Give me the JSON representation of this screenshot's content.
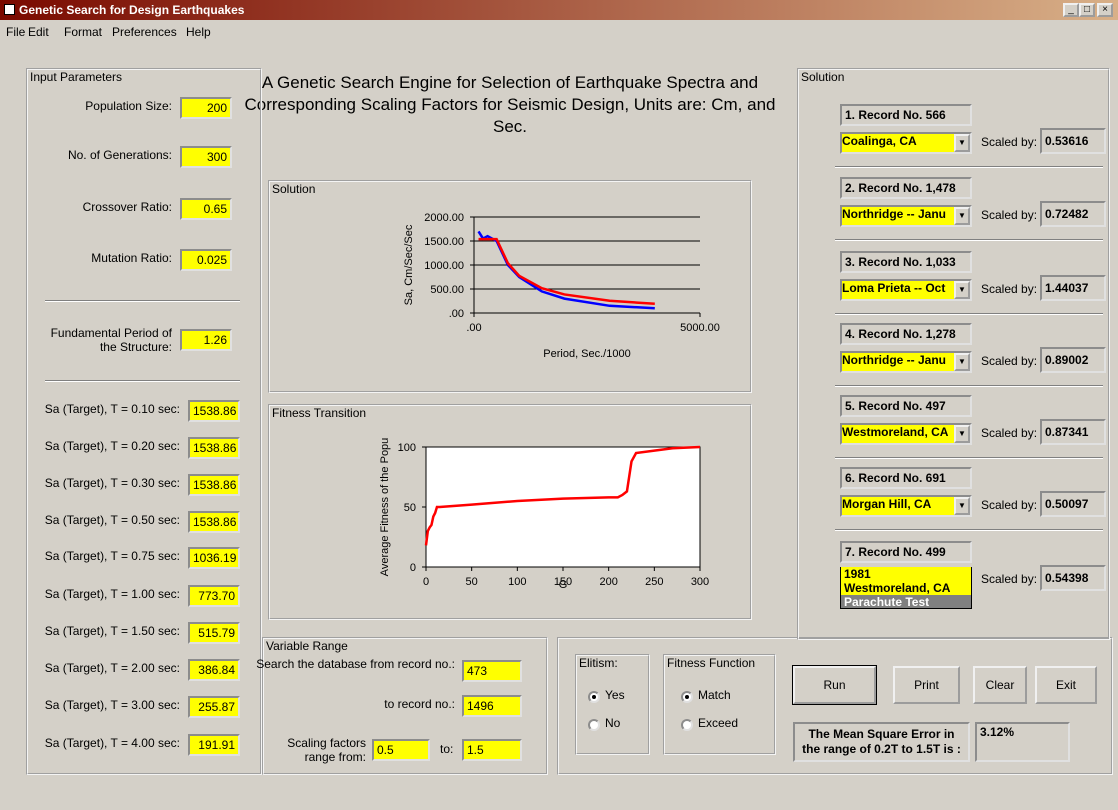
{
  "window": {
    "title": "Genetic Search for Design Earthquakes"
  },
  "menu": [
    "File",
    "Edit",
    "Format",
    "Preferences",
    "Help"
  ],
  "heading": "A Genetic Search Engine for Selection of Earthquake Spectra and Corresponding Scaling Factors for Seismic Design,  Units are: Cm, and Sec.",
  "input_parameters": {
    "title": "Input Parameters",
    "fields": [
      {
        "label": "Population Size:",
        "value": "200"
      },
      {
        "label": "No. of Generations:",
        "value": "300"
      },
      {
        "label": "Crossover Ratio:",
        "value": "0.65"
      },
      {
        "label": "Mutation Ratio:",
        "value": "0.025"
      }
    ],
    "period": {
      "label": "Fundamental Period of the Structure:",
      "value": "1.26"
    },
    "targets": [
      {
        "label": "Sa (Target), T = 0.10 sec:",
        "value": "1538.86"
      },
      {
        "label": "Sa (Target), T = 0.20 sec:",
        "value": "1538.86"
      },
      {
        "label": "Sa (Target), T = 0.30 sec:",
        "value": "1538.86"
      },
      {
        "label": "Sa (Target), T = 0.50 sec:",
        "value": "1538.86"
      },
      {
        "label": "Sa (Target), T = 0.75 sec:",
        "value": "1036.19"
      },
      {
        "label": "Sa (Target), T = 1.00 sec:",
        "value": "773.70"
      },
      {
        "label": "Sa (Target), T = 1.50 sec:",
        "value": "515.79"
      },
      {
        "label": "Sa (Target), T = 2.00 sec:",
        "value": "386.84"
      },
      {
        "label": "Sa (Target), T = 3.00 sec:",
        "value": "255.87"
      },
      {
        "label": "Sa (Target), T = 4.00 sec:",
        "value": "191.91"
      }
    ]
  },
  "solution_chart": {
    "title": "Solution",
    "type": "line",
    "y_label": "Sa, Cm/Sec/Sec",
    "x_label": "Period, Sec./1000",
    "x": [
      100,
      200,
      300,
      500,
      750,
      1000,
      1500,
      2000,
      3000,
      4000
    ],
    "series": [
      {
        "color": "#0000ff",
        "values": [
          1700,
          1550,
          1600,
          1500,
          1000,
          750,
          450,
          300,
          150,
          100
        ]
      },
      {
        "color": "#ff0000",
        "values": [
          1538.86,
          1538.86,
          1538.86,
          1538.86,
          1036.19,
          773.7,
          515.79,
          386.84,
          255.87,
          191.91
        ]
      }
    ],
    "xlim": [
      0,
      5000
    ],
    "xticks": [
      {
        "value": 0,
        "label": ".00"
      },
      {
        "value": 5000,
        "label": "5000.00"
      }
    ],
    "ylim": [
      0,
      2000
    ],
    "yticks": [
      {
        "value": 0,
        "label": ".00"
      },
      {
        "value": 500,
        "label": "500.00"
      },
      {
        "value": 1000,
        "label": "1000.00"
      },
      {
        "value": 1500,
        "label": "1500.00"
      },
      {
        "value": 2000,
        "label": "2000.00"
      }
    ],
    "grid": true
  },
  "fitness_chart": {
    "title": "Fitness Transition",
    "type": "line",
    "y_label": "Average Fitness of the Popu",
    "x_label": "G",
    "x": [
      0,
      2,
      4,
      6,
      8,
      10,
      12,
      15,
      50,
      100,
      150,
      200,
      210,
      215,
      220,
      225,
      230,
      250,
      270,
      300
    ],
    "series": [
      {
        "color": "#ff0000",
        "values": [
          18,
          30,
          33,
          35,
          42,
          45,
          50,
          50,
          52,
          55,
          57,
          58,
          58,
          60,
          63,
          88,
          95,
          97,
          99,
          100
        ]
      }
    ],
    "xlim": [
      0,
      300
    ],
    "xticks": [
      0,
      50,
      100,
      150,
      200,
      250,
      300
    ],
    "ylim": [
      0,
      100
    ],
    "yticks": [
      0,
      50,
      100
    ],
    "grid": false,
    "plot_background": "#ffffff"
  },
  "variable_range": {
    "title": "Variable Range",
    "from_label": "Search the database from record no.:",
    "from_value": "473",
    "to_label": "to record no.:",
    "to_value": "1496",
    "scale_from_label": "Scaling factors range from:",
    "scale_from_value": "0.5",
    "scale_to_label": "to:",
    "scale_to_value": "1.5"
  },
  "controls": {
    "elitism": {
      "title": "Elitism:",
      "options": [
        "Yes",
        "No"
      ],
      "selected": 0
    },
    "fitness_function": {
      "title": "Fitness Function",
      "options": [
        "Match",
        "Exceed"
      ],
      "selected": 0
    },
    "buttons": [
      "Run",
      "Print",
      "Clear",
      "Exit"
    ],
    "mse": {
      "label": "The Mean Square Error in the range of 0.2T to 1.5T is :",
      "value": "3.12%"
    }
  },
  "solution": {
    "title": "Solution",
    "scaled_label": "Scaled by:",
    "records": [
      {
        "label": "1. Record No. 566",
        "event": "Coalinga, CA",
        "scale": "0.53616"
      },
      {
        "label": "2. Record No. 1,478",
        "event": "Northridge -- Janu",
        "scale": "0.72482"
      },
      {
        "label": "3. Record No. 1,033",
        "event": "Loma Prieta -- Oct",
        "scale": "1.44037"
      },
      {
        "label": "4. Record No. 1,278",
        "event": "Northridge -- Janu",
        "scale": "0.89002"
      },
      {
        "label": "5. Record No. 497",
        "event": "Westmoreland, CA",
        "scale": "0.87341"
      },
      {
        "label": "6. Record No. 691",
        "event": "Morgan Hill, CA",
        "scale": "0.50097"
      },
      {
        "label": "7. Record No. 499",
        "event": "1981",
        "scale": "0.54398"
      }
    ],
    "dropdown": {
      "items": [
        "1981",
        "Westmoreland, CA",
        "Parachute Test"
      ],
      "highlighted": 2
    }
  }
}
